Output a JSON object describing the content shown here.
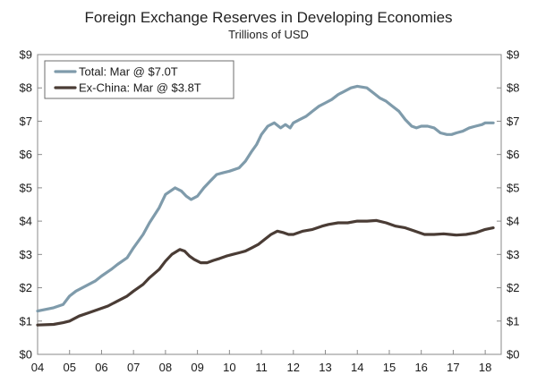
{
  "chart_data": {
    "type": "line",
    "title": "Foreign Exchange Reserves in Developing Economies",
    "subtitle": "Trillions of USD",
    "xlabel": "",
    "ylabel": "",
    "ylim": [
      0,
      9
    ],
    "xlim": [
      2004,
      2018.5
    ],
    "y_ticks": [
      0,
      1,
      2,
      3,
      4,
      5,
      6,
      7,
      8,
      9
    ],
    "y_tick_labels": [
      "$0",
      "$1",
      "$2",
      "$3",
      "$4",
      "$5",
      "$6",
      "$7",
      "$8",
      "$9"
    ],
    "x_ticks": [
      2004,
      2005,
      2006,
      2007,
      2008,
      2009,
      2010,
      2011,
      2012,
      2013,
      2014,
      2015,
      2016,
      2017,
      2018
    ],
    "x_tick_labels": [
      "04",
      "05",
      "06",
      "07",
      "08",
      "09",
      "10",
      "11",
      "12",
      "13",
      "14",
      "15",
      "16",
      "17",
      "18"
    ],
    "grid": false,
    "legend_position": "top-left",
    "series": [
      {
        "name": "Total: Mar @ $7.0T",
        "color": "#7f9bab",
        "x": [
          2004.0,
          2004.5,
          2004.8,
          2005.0,
          2005.2,
          2005.5,
          2005.8,
          2006.0,
          2006.3,
          2006.5,
          2006.8,
          2007.0,
          2007.3,
          2007.5,
          2007.8,
          2008.0,
          2008.3,
          2008.5,
          2008.65,
          2008.8,
          2009.0,
          2009.2,
          2009.4,
          2009.6,
          2009.8,
          2010.0,
          2010.3,
          2010.5,
          2010.7,
          2010.85,
          2011.0,
          2011.2,
          2011.4,
          2011.6,
          2011.75,
          2011.9,
          2012.0,
          2012.2,
          2012.4,
          2012.6,
          2012.8,
          2013.0,
          2013.2,
          2013.4,
          2013.6,
          2013.8,
          2014.0,
          2014.3,
          2014.5,
          2014.7,
          2014.9,
          2015.1,
          2015.3,
          2015.5,
          2015.7,
          2015.85,
          2016.0,
          2016.2,
          2016.4,
          2016.6,
          2016.8,
          2016.95,
          2017.1,
          2017.3,
          2017.5,
          2017.7,
          2017.9,
          2018.0,
          2018.25
        ],
        "values": [
          1.3,
          1.4,
          1.5,
          1.75,
          1.9,
          2.05,
          2.2,
          2.35,
          2.55,
          2.7,
          2.9,
          3.2,
          3.6,
          3.95,
          4.4,
          4.8,
          5.0,
          4.9,
          4.75,
          4.65,
          4.75,
          5.0,
          5.2,
          5.4,
          5.45,
          5.5,
          5.6,
          5.8,
          6.1,
          6.3,
          6.6,
          6.85,
          6.95,
          6.8,
          6.9,
          6.8,
          6.95,
          7.05,
          7.15,
          7.3,
          7.45,
          7.55,
          7.65,
          7.8,
          7.9,
          8.0,
          8.05,
          8.0,
          7.85,
          7.7,
          7.6,
          7.45,
          7.3,
          7.05,
          6.85,
          6.8,
          6.85,
          6.85,
          6.8,
          6.65,
          6.6,
          6.6,
          6.65,
          6.7,
          6.8,
          6.85,
          6.9,
          6.95,
          6.95
        ]
      },
      {
        "name": "Ex-China: Mar @ $3.8T",
        "color": "#4a3c35",
        "x": [
          2004.0,
          2004.5,
          2004.8,
          2005.0,
          2005.3,
          2005.6,
          2005.9,
          2006.2,
          2006.5,
          2006.8,
          2007.0,
          2007.3,
          2007.5,
          2007.8,
          2008.0,
          2008.2,
          2008.45,
          2008.6,
          2008.75,
          2008.9,
          2009.1,
          2009.3,
          2009.5,
          2009.7,
          2009.9,
          2010.1,
          2010.3,
          2010.5,
          2010.7,
          2010.9,
          2011.1,
          2011.3,
          2011.5,
          2011.7,
          2011.85,
          2012.0,
          2012.3,
          2012.6,
          2012.9,
          2013.1,
          2013.4,
          2013.7,
          2014.0,
          2014.3,
          2014.6,
          2014.9,
          2015.2,
          2015.5,
          2015.8,
          2016.1,
          2016.4,
          2016.7,
          2016.9,
          2017.1,
          2017.4,
          2017.7,
          2018.0,
          2018.25
        ],
        "values": [
          0.88,
          0.9,
          0.95,
          1.0,
          1.15,
          1.25,
          1.35,
          1.45,
          1.6,
          1.75,
          1.9,
          2.1,
          2.3,
          2.55,
          2.8,
          3.0,
          3.15,
          3.1,
          2.95,
          2.85,
          2.75,
          2.75,
          2.82,
          2.88,
          2.95,
          3.0,
          3.05,
          3.1,
          3.2,
          3.3,
          3.45,
          3.6,
          3.7,
          3.65,
          3.6,
          3.6,
          3.7,
          3.75,
          3.85,
          3.9,
          3.95,
          3.95,
          4.0,
          4.0,
          4.02,
          3.95,
          3.85,
          3.8,
          3.7,
          3.6,
          3.6,
          3.62,
          3.6,
          3.58,
          3.6,
          3.65,
          3.75,
          3.8
        ]
      }
    ]
  }
}
